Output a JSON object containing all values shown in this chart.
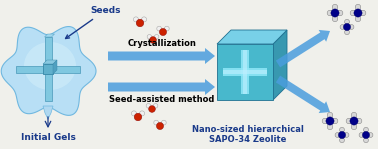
{
  "bg_color": "#f0f0eb",
  "label_seeds": "Seeds",
  "label_initial_gels": "Initial Gels",
  "label_crystallization": "Crystallization",
  "label_seed_method": "Seed-assisted method",
  "label_nano": "Nano-sized hierarchical",
  "label_sapo": "SAPO-34 Zeolite",
  "gel_outer_color": "#a0d4f0",
  "gel_mid_color": "#c0e4f8",
  "gel_inner_color": "#daf0ff",
  "gel_cross_color": "#6ab8d8",
  "gel_cross_edge": "#3a88b8",
  "cube_front_color": "#50c0cc",
  "cube_side_color": "#38a0b8",
  "cube_top_color": "#78d8e8",
  "cube_cross_color": "#a0eef8",
  "arrow_color": "#4499dd",
  "arrow_mid_color": "#3388cc",
  "text_color": "#1a3a8a",
  "water_O_color": "#cc2200",
  "water_H_color": "#f0f0f0",
  "mol_blue_color": "#0000cc",
  "mol_white_color": "#e0e0e0",
  "mol_dark_blue": "#000088"
}
